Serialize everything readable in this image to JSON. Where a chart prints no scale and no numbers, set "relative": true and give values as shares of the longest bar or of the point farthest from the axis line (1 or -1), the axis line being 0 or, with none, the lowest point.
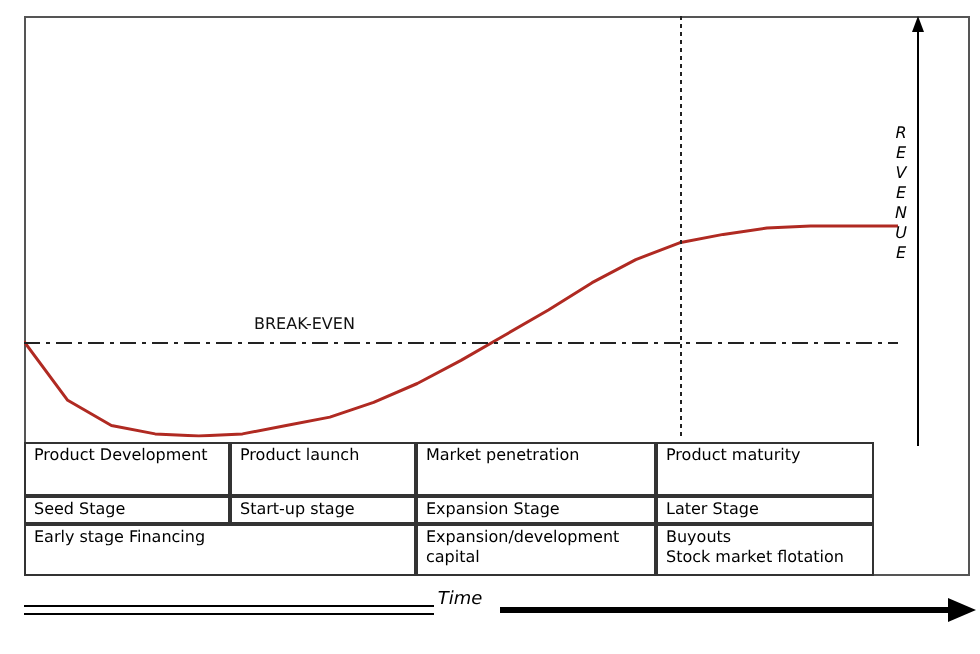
{
  "chart_data": {
    "type": "line",
    "relative": true,
    "marker": "none",
    "color": "#b02a22",
    "ylabel": "REVENUE",
    "categories": [
      null,
      null,
      null,
      null,
      null,
      null,
      null,
      null,
      null,
      null,
      null,
      null,
      null,
      null,
      null,
      null,
      null,
      null,
      null,
      null,
      null
    ],
    "values": [
      0.45,
      0.17,
      0.05,
      0.01,
      0,
      0.01,
      0.05,
      0.09,
      0.16,
      0.25,
      0.36,
      0.48,
      0.6,
      0.73,
      0.84,
      0.92,
      0.96,
      0.99,
      1,
      1,
      1
    ],
    "ref_lines": [
      {
        "axis": "y",
        "value": 0.45,
        "label": "BREAK-EVEN",
        "line_style": "dashdot"
      }
    ],
    "annotations": [
      "Product Development",
      "Product launch",
      "Market penetration",
      "Product maturity",
      "Seed Stage",
      "Start-up stage",
      "Expansion Stage",
      "Later Stage",
      "Early stage Financing",
      "Expansion/development capital",
      "Buyouts\nStock market flotation",
      "Time"
    ]
  }
}
